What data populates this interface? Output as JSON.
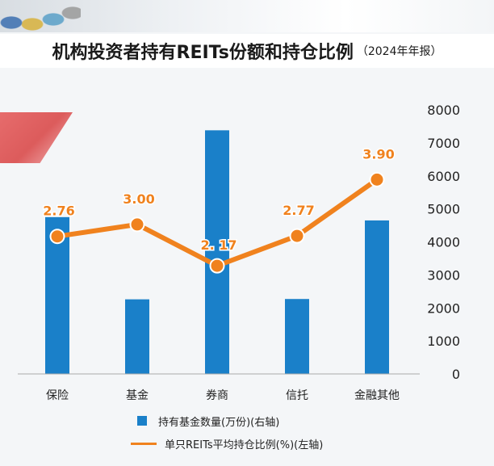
{
  "header": {
    "title": "机构投资者持有REITs份额和持仓比例",
    "subtitle": "（2024年年报）"
  },
  "legend": {
    "bar_label": "持有基金数量(万份)(右轴)",
    "line_label": "单只REITs平均持仓比例(%)(左轴)"
  },
  "colors": {
    "bar": "#1a80c9",
    "line": "#f0821e",
    "label": "#f0821e"
  },
  "chart_data": {
    "type": "bar+line",
    "categories": [
      "保险",
      "基金",
      "券商",
      "信托",
      "金融其他"
    ],
    "bar_series": {
      "name": "持有基金数量(万份)(右轴)",
      "values": [
        4750,
        2260,
        7380,
        2270,
        4650
      ],
      "axis": "right"
    },
    "line_series": {
      "name": "单只REITs平均持仓比例(%)(左轴)",
      "values": [
        2.76,
        3.0,
        2.17,
        2.77,
        3.9
      ],
      "value_labels": [
        "2.76",
        "3.00",
        "2. 17",
        "2.77",
        "3.90"
      ],
      "axis": "left"
    },
    "right_axis": {
      "ticks": [
        "0",
        "1000",
        "2000",
        "3000",
        "4000",
        "5000",
        "6000",
        "7000",
        "8000"
      ],
      "range": [
        0,
        8000
      ]
    },
    "left_axis_range": [
      0,
      5.3
    ],
    "grid": false,
    "legend_position": "bottom"
  }
}
